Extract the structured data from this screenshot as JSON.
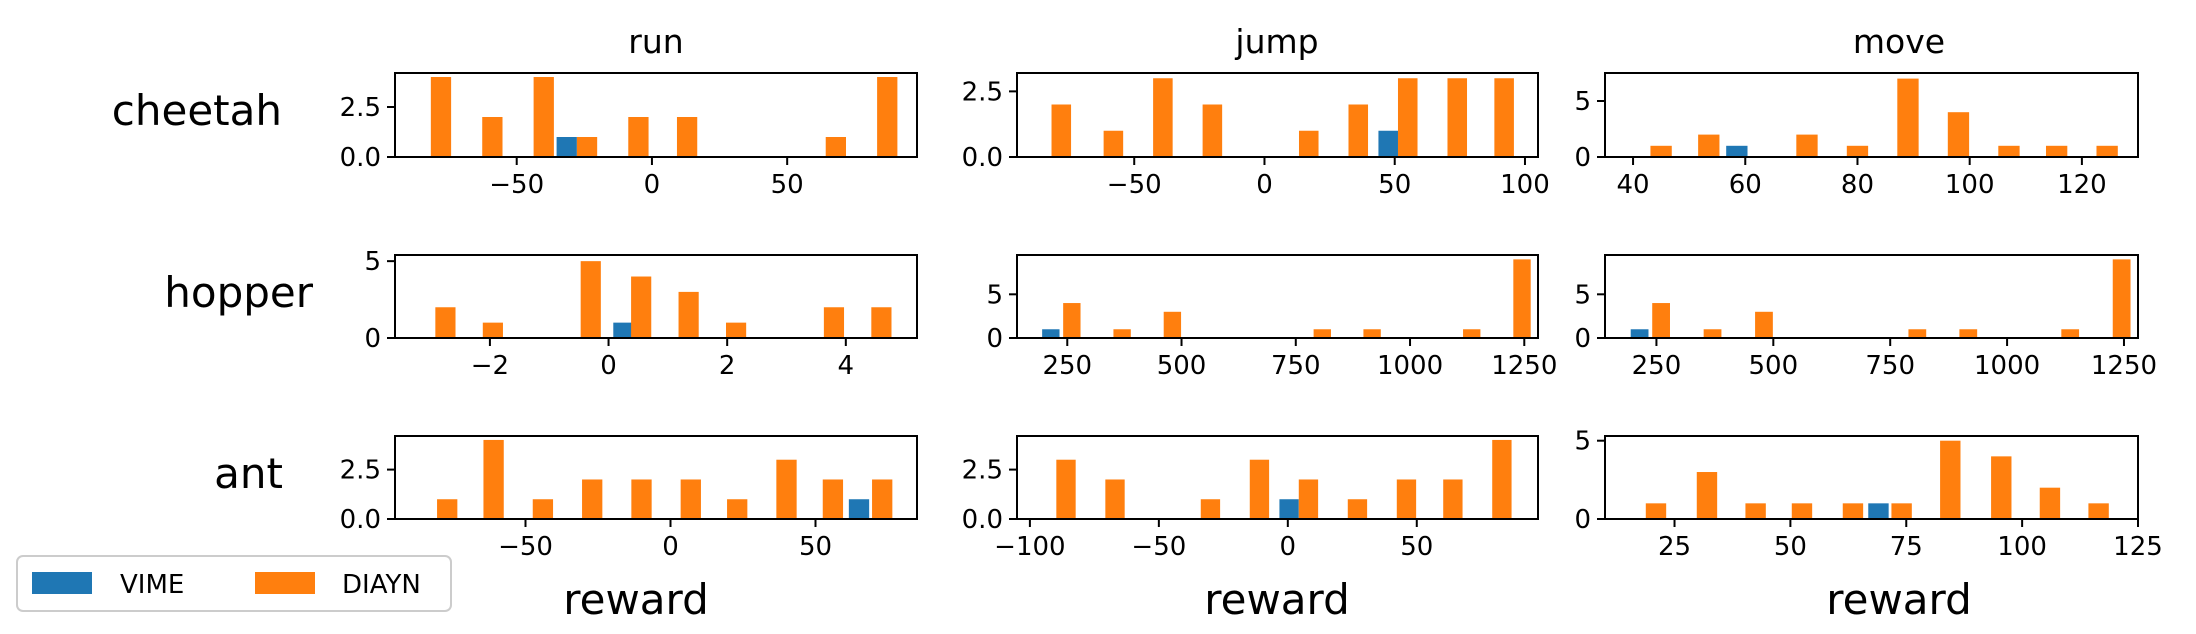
{
  "colors": {
    "VIME": "#1f77b4",
    "DIAYN": "#ff7f0e"
  },
  "legend": [
    {
      "label": "VIME",
      "color": "#1f77b4"
    },
    {
      "label": "DIAYN",
      "color": "#ff7f0e"
    }
  ],
  "column_titles": [
    "run",
    "jump",
    "move"
  ],
  "row_labels": [
    "cheetah",
    "hopper",
    "ant"
  ],
  "xlabel": "reward",
  "chart_data": [
    {
      "type": "bar",
      "row": "cheetah",
      "column": "run",
      "xlim": [
        -95,
        98
      ],
      "ylim": [
        0,
        4.2
      ],
      "xticks": [
        -50,
        0,
        50
      ],
      "xtick_labels": [
        "−50",
        "0",
        "50"
      ],
      "yticks": [
        0,
        2.5
      ],
      "ytick_labels": [
        "0.0",
        "2.5"
      ],
      "bin_width": 7.5,
      "series": [
        {
          "name": "VIME",
          "x": [
            -31.5
          ],
          "values": [
            1
          ]
        },
        {
          "name": "DIAYN",
          "x": [
            -78,
            -59,
            -40,
            -24,
            -5,
            13,
            68,
            87
          ],
          "values": [
            4,
            2,
            4,
            1,
            2,
            2,
            1,
            4
          ]
        }
      ]
    },
    {
      "type": "bar",
      "row": "cheetah",
      "column": "jump",
      "xlim": [
        -95,
        105
      ],
      "ylim": [
        0,
        3.2
      ],
      "xticks": [
        -50,
        0,
        50,
        100
      ],
      "xtick_labels": [
        "−50",
        "0",
        "50",
        "100"
      ],
      "yticks": [
        0,
        2.5
      ],
      "ytick_labels": [
        "0.0",
        "2.5"
      ],
      "bin_width": 7.5,
      "series": [
        {
          "name": "VIME",
          "x": [
            47.5
          ],
          "values": [
            1
          ]
        },
        {
          "name": "DIAYN",
          "x": [
            -78,
            -58,
            -39,
            -20,
            17,
            36,
            55,
            74,
            92
          ],
          "values": [
            2,
            1,
            3,
            2,
            1,
            2,
            3,
            3,
            3
          ]
        }
      ]
    },
    {
      "type": "bar",
      "row": "cheetah",
      "column": "move",
      "xlim": [
        35,
        130
      ],
      "ylim": [
        0,
        7.5
      ],
      "xticks": [
        40,
        60,
        80,
        100,
        120
      ],
      "xtick_labels": [
        "40",
        "60",
        "80",
        "100",
        "120"
      ],
      "yticks": [
        0,
        5
      ],
      "ytick_labels": [
        "0",
        "5"
      ],
      "bin_width": 3.8,
      "series": [
        {
          "name": "VIME",
          "x": [
            58.5
          ],
          "values": [
            1
          ]
        },
        {
          "name": "DIAYN",
          "x": [
            45,
            53.5,
            71,
            80,
            89,
            98,
            107,
            115.5,
            124.5
          ],
          "values": [
            1,
            2,
            2,
            1,
            7,
            4,
            1,
            1,
            1
          ]
        }
      ]
    },
    {
      "type": "bar",
      "row": "hopper",
      "column": "run",
      "xlim": [
        -3.6,
        5.2
      ],
      "ylim": [
        0,
        5.4
      ],
      "xticks": [
        -2,
        0,
        2,
        4
      ],
      "xtick_labels": [
        "−2",
        "0",
        "2",
        "4"
      ],
      "yticks": [
        0,
        5
      ],
      "ytick_labels": [
        "0",
        "5"
      ],
      "bin_width": 0.34,
      "series": [
        {
          "name": "VIME",
          "x": [
            0.25
          ],
          "values": [
            1
          ]
        },
        {
          "name": "DIAYN",
          "x": [
            -2.75,
            -1.95,
            -0.3,
            0.55,
            1.35,
            2.15,
            3.8,
            4.6
          ],
          "values": [
            2,
            1,
            5,
            4,
            3,
            1,
            2,
            2
          ]
        }
      ]
    },
    {
      "type": "bar",
      "row": "hopper",
      "column": "jump",
      "xlim": [
        140,
        1280
      ],
      "ylim": [
        0,
        9.5
      ],
      "xticks": [
        250,
        500,
        750,
        1000,
        1250
      ],
      "xtick_labels": [
        "250",
        "500",
        "750",
        "1000",
        "1250"
      ],
      "yticks": [
        0,
        5
      ],
      "ytick_labels": [
        "0",
        "5"
      ],
      "bin_width": 38,
      "series": [
        {
          "name": "VIME",
          "x": [
            214
          ],
          "values": [
            1
          ]
        },
        {
          "name": "DIAYN",
          "x": [
            260,
            370,
            480,
            808,
            917,
            1135,
            1245
          ],
          "values": [
            4,
            1,
            3,
            1,
            1,
            1,
            9
          ]
        }
      ]
    },
    {
      "type": "bar",
      "row": "hopper",
      "column": "move",
      "xlim": [
        140,
        1280
      ],
      "ylim": [
        0,
        9.5
      ],
      "xticks": [
        250,
        500,
        750,
        1000,
        1250
      ],
      "xtick_labels": [
        "250",
        "500",
        "750",
        "1000",
        "1250"
      ],
      "yticks": [
        0,
        5
      ],
      "ytick_labels": [
        "0",
        "5"
      ],
      "bin_width": 38,
      "series": [
        {
          "name": "VIME",
          "x": [
            214
          ],
          "values": [
            1
          ]
        },
        {
          "name": "DIAYN",
          "x": [
            260,
            370,
            480,
            808,
            917,
            1135,
            1245
          ],
          "values": [
            4,
            1,
            3,
            1,
            1,
            1,
            9
          ]
        }
      ]
    },
    {
      "type": "bar",
      "row": "ant",
      "column": "run",
      "xlim": [
        -95,
        85
      ],
      "ylim": [
        0,
        4.2
      ],
      "xticks": [
        -50,
        0,
        50
      ],
      "xtick_labels": [
        "−50",
        "0",
        "50"
      ],
      "yticks": [
        0,
        2.5
      ],
      "ytick_labels": [
        "0.0",
        "2.5"
      ],
      "bin_width": 7,
      "series": [
        {
          "name": "VIME",
          "x": [
            65
          ],
          "values": [
            1
          ]
        },
        {
          "name": "DIAYN",
          "x": [
            -77,
            -61,
            -44,
            -27,
            -10,
            7,
            23,
            40,
            56,
            73
          ],
          "values": [
            1,
            4,
            1,
            2,
            2,
            2,
            1,
            3,
            2,
            2
          ]
        }
      ]
    },
    {
      "type": "bar",
      "row": "ant",
      "column": "jump",
      "xlim": [
        -105,
        97
      ],
      "ylim": [
        0,
        4.2
      ],
      "xticks": [
        -100,
        -50,
        0,
        50
      ],
      "xtick_labels": [
        "−100",
        "−50",
        "0",
        "50"
      ],
      "yticks": [
        0,
        2.5
      ],
      "ytick_labels": [
        "0.0",
        "2.5"
      ],
      "bin_width": 7.5,
      "series": [
        {
          "name": "VIME",
          "x": [
            0.5
          ],
          "values": [
            1
          ]
        },
        {
          "name": "DIAYN",
          "x": [
            -86,
            -67,
            -30,
            -11,
            8,
            27,
            46,
            64,
            83
          ],
          "values": [
            3,
            2,
            1,
            3,
            2,
            1,
            2,
            2,
            4
          ]
        }
      ]
    },
    {
      "type": "bar",
      "row": "ant",
      "column": "move",
      "xlim": [
        10,
        125
      ],
      "ylim": [
        0,
        5.3
      ],
      "xticks": [
        25,
        50,
        75,
        100,
        125
      ],
      "xtick_labels": [
        "25",
        "50",
        "75",
        "100",
        "125"
      ],
      "yticks": [
        0,
        5
      ],
      "ytick_labels": [
        "0",
        "5"
      ],
      "bin_width": 4.4,
      "series": [
        {
          "name": "VIME",
          "x": [
            69
          ],
          "values": [
            1
          ]
        },
        {
          "name": "DIAYN",
          "x": [
            21,
            32,
            42.5,
            52.5,
            63.5,
            74,
            84.5,
            95.5,
            106,
            116.5
          ],
          "values": [
            1,
            3,
            1,
            1,
            1,
            1,
            5,
            4,
            2,
            1
          ]
        }
      ]
    }
  ]
}
